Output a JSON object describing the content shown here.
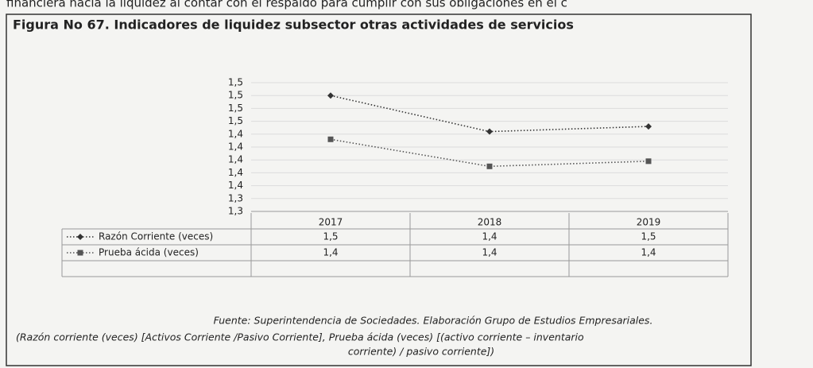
{
  "header_text": "financiera hacia la liquidez al contar con el respaldo para cumplir con sus obligaciones en el c",
  "chart_data": {
    "type": "line",
    "title": "Figura No 67. Indicadores de liquidez subsector otras actividades de servicios",
    "categories": [
      "2017",
      "2018",
      "2019"
    ],
    "series": [
      {
        "name": "Razón Corriente (veces)",
        "color": "#333333",
        "marker": "diamond",
        "values": [
          1.5,
          1.444,
          1.452
        ],
        "value_labels": [
          "1,5",
          "1,4",
          "1,5"
        ]
      },
      {
        "name": "Prueba ácida (veces)",
        "color": "#555555",
        "marker": "square",
        "values": [
          1.432,
          1.39,
          1.398
        ],
        "value_labels": [
          "1,4",
          "1,4",
          "1,4"
        ]
      }
    ],
    "ylim": [
      1.32,
      1.52
    ],
    "yticks": [
      {
        "value": 1.32,
        "label": "1,3"
      },
      {
        "value": 1.34,
        "label": "1,3"
      },
      {
        "value": 1.36,
        "label": "1,4"
      },
      {
        "value": 1.38,
        "label": "1,4"
      },
      {
        "value": 1.4,
        "label": "1,4"
      },
      {
        "value": 1.42,
        "label": "1,4"
      },
      {
        "value": 1.44,
        "label": "1,4"
      },
      {
        "value": 1.46,
        "label": "1,5"
      },
      {
        "value": 1.48,
        "label": "1,5"
      },
      {
        "value": 1.5,
        "label": "1,5"
      },
      {
        "value": 1.52,
        "label": "1,5"
      }
    ],
    "grid": true,
    "source": "Fuente: Superintendencia de Sociedades. Elaboración Grupo de Estudios Empresariales.",
    "note": [
      "(Razón corriente (veces) [Activos Corriente /Pasivo Corriente], Prueba ácida (veces) [(activo corriente – inventario",
      "corriente) / pasivo corriente])"
    ]
  }
}
